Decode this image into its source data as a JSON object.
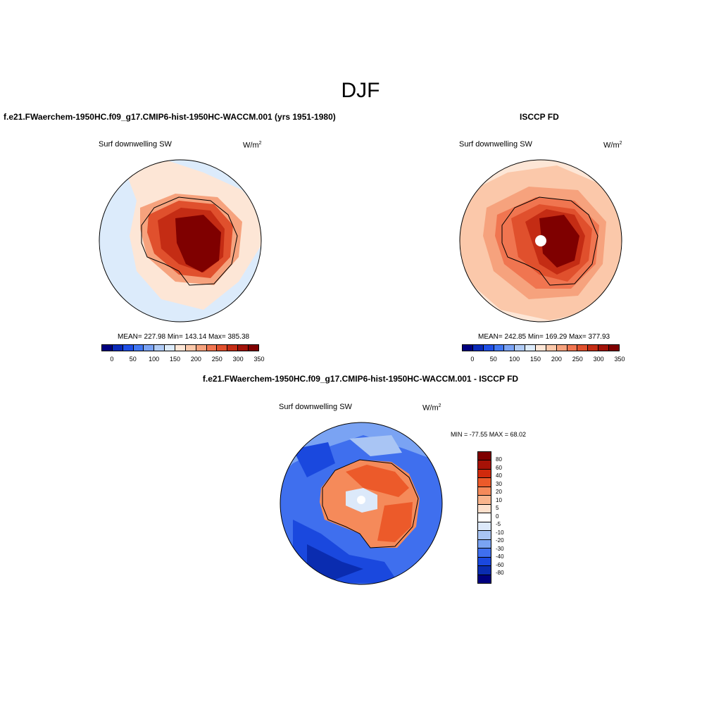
{
  "season_title": "DJF",
  "panel_left": {
    "title": "f.e21.FWaerchem-1950HC.f09_g17.CMIP6-hist-1950HC-WACCM.001 (yrs 1951-1980)",
    "variable": "Surf downwelling SW",
    "units": "W/m",
    "units_exp": "2",
    "stats": "MEAN= 227.98  Min= 143.14  Max= 385.38",
    "colorbar_ticks": [
      "0",
      "50",
      "100",
      "150",
      "200",
      "250",
      "300",
      "350"
    ]
  },
  "panel_right": {
    "title": "ISCCP FD",
    "variable": "Surf downwelling SW",
    "units": "W/m",
    "units_exp": "2",
    "stats": "MEAN= 242.85  Min= 169.29  Max= 377.93",
    "colorbar_ticks": [
      "0",
      "50",
      "100",
      "150",
      "200",
      "250",
      "300",
      "350"
    ]
  },
  "panel_diff": {
    "title": "f.e21.FWaerchem-1950HC.f09_g17.CMIP6-hist-1950HC-WACCM.001 - ISCCP FD",
    "variable": "Surf downwelling SW",
    "units": "W/m",
    "units_exp": "2",
    "stats": "MIN = -77.55 MAX =  68.02",
    "colorbar_ticks": [
      "80",
      "60",
      "40",
      "30",
      "20",
      "10",
      "5",
      "0",
      "-5",
      "-10",
      "-20",
      "-30",
      "-40",
      "-60",
      "-80"
    ]
  },
  "colors": {
    "abs_scale": [
      "#00007f",
      "#0a2ab8",
      "#1f4fe6",
      "#4177f3",
      "#7aa3f5",
      "#b0cbf5",
      "#dcebfb",
      "#fde6d6",
      "#fbc8aa",
      "#f6a27d",
      "#f07550",
      "#e0502d",
      "#c42c14",
      "#a11208",
      "#7f0000"
    ],
    "diff_scale": [
      "#7f0000",
      "#a61207",
      "#d02a0c",
      "#ec5a2a",
      "#f58a5a",
      "#f9b48c",
      "#fde0cc",
      "#ffffff",
      "#dce9fa",
      "#a9c5f4",
      "#7aa3f3",
      "#3f6fee",
      "#1a48de",
      "#0a2cb0",
      "#00007f"
    ]
  }
}
